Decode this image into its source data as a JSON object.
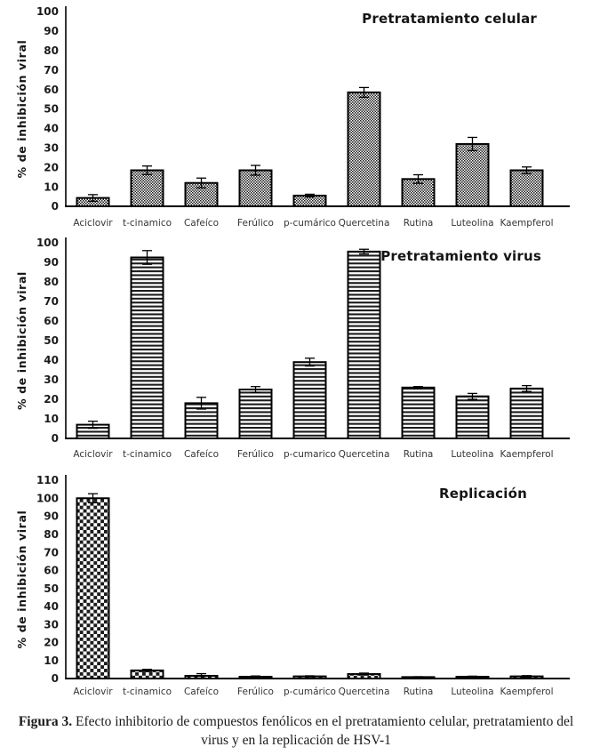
{
  "caption": {
    "label": "Figura 3.",
    "text": "Efecto inhibitorio de compuestos fenólicos en el pretratamiento celular, pretratamiento del virus y en la replicación de HSV-1"
  },
  "colors": {
    "ink": "#1a1a1a",
    "axis": "#000000",
    "bar_stroke": "#000000",
    "pattern_ink": "#1c1c1c",
    "category_label": "#353535",
    "background": "#ffffff"
  },
  "chart_data": [
    {
      "type": "bar",
      "title": "Pretratamiento celular",
      "xlabel": "",
      "ylabel": "% de inhibición viral",
      "ylim": [
        0,
        100
      ],
      "yticks": [
        0,
        10,
        20,
        30,
        40,
        50,
        60,
        70,
        80,
        90,
        100
      ],
      "grid": false,
      "legend": "none",
      "pattern": "fine-checker",
      "categories": [
        "Aciclovir",
        "t-cinamico",
        "Cafeíco",
        "Ferúlico",
        "p-cumárico",
        "Quercetina",
        "Rutina",
        "Luteolina",
        "Kaempferol"
      ],
      "values": [
        4.3,
        18.5,
        12,
        18.5,
        5.5,
        58.5,
        14,
        32,
        18.5
      ],
      "errors": [
        1.7,
        2.2,
        2.5,
        2.5,
        0.7,
        2.5,
        2.2,
        3.4,
        1.7
      ]
    },
    {
      "type": "bar",
      "title": "Pretratamiento virus",
      "xlabel": "",
      "ylabel": "% de inhibición viral",
      "ylim": [
        0,
        100
      ],
      "yticks": [
        0,
        10,
        20,
        30,
        40,
        50,
        60,
        70,
        80,
        90,
        100
      ],
      "grid": false,
      "legend": "none",
      "pattern": "hlines",
      "categories": [
        "Aciclovir",
        "t-cinamico",
        "Cafeíco",
        "Ferúlico",
        "p-cumarico",
        "Quercetina",
        "Rutina",
        "Luteolina",
        "Kaempferol"
      ],
      "values": [
        7,
        92.5,
        18,
        25,
        39,
        95.5,
        26,
        21.5,
        25.5
      ],
      "errors": [
        1.8,
        3.5,
        3,
        1.5,
        2,
        1.2,
        0.5,
        1.5,
        1.5
      ]
    },
    {
      "type": "bar",
      "title": "Replicación",
      "xlabel": "",
      "ylabel": "% de inhibición viral",
      "ylim": [
        0,
        110
      ],
      "yticks": [
        0,
        10,
        20,
        30,
        40,
        50,
        60,
        70,
        80,
        90,
        100,
        110
      ],
      "grid": false,
      "legend": "none",
      "pattern": "checker",
      "categories": [
        "Aciclovir",
        "t-cinamico",
        "Cafeíco",
        "Ferúlico",
        "p-cumárico",
        "Quercetina",
        "Rutina",
        "Luteolina",
        "Kaempferol"
      ],
      "values": [
        100,
        4.5,
        1.5,
        1,
        1.2,
        2.5,
        0.8,
        1,
        1.2
      ],
      "errors": [
        2.5,
        0.6,
        1.2,
        0.4,
        0.3,
        0.5,
        0.2,
        0.3,
        0.4
      ]
    }
  ]
}
